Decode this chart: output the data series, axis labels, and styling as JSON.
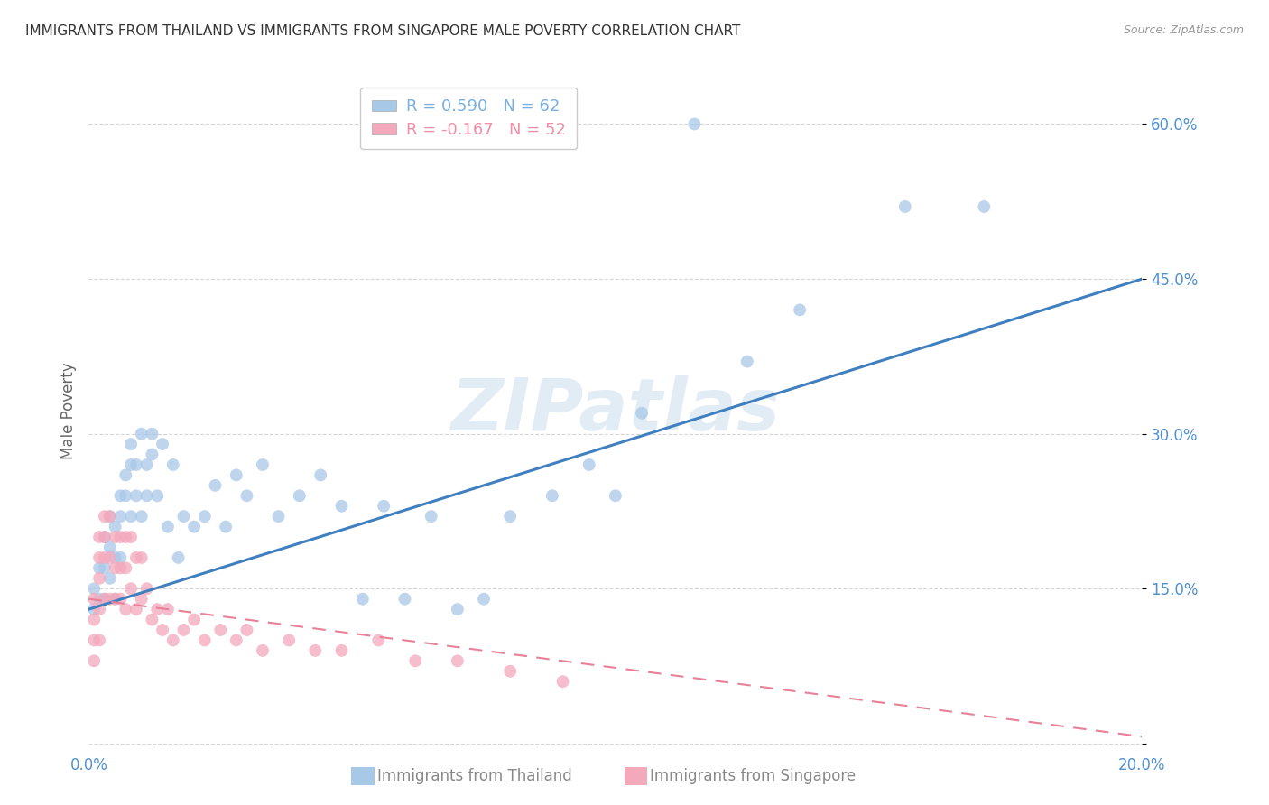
{
  "title": "IMMIGRANTS FROM THAILAND VS IMMIGRANTS FROM SINGAPORE MALE POVERTY CORRELATION CHART",
  "source": "Source: ZipAtlas.com",
  "ylabel": "Male Poverty",
  "xlim": [
    0.0,
    0.2
  ],
  "ylim": [
    -0.005,
    0.65
  ],
  "yticks": [
    0.0,
    0.15,
    0.3,
    0.45,
    0.6
  ],
  "xticks": [
    0.0,
    0.04,
    0.08,
    0.12,
    0.16,
    0.2
  ],
  "xtick_labels": [
    "0.0%",
    "",
    "",
    "",
    "",
    "20.0%"
  ],
  "ytick_labels": [
    "",
    "15.0%",
    "30.0%",
    "45.0%",
    "60.0%"
  ],
  "legend_entries": [
    {
      "label": "R = 0.590   N = 62",
      "color": "#7ab0e0"
    },
    {
      "label": "R = -0.167   N = 52",
      "color": "#f090a8"
    }
  ],
  "thailand_color": "#a8c8e8",
  "singapore_color": "#f4a8bc",
  "thailand_line_color": "#4080c0",
  "singapore_line_color": "#e88098",
  "watermark": "ZIPatlas",
  "background_color": "#ffffff",
  "grid_color": "#cccccc",
  "title_color": "#333333",
  "axis_label_color": "#666666",
  "tick_label_color": "#5090cc",
  "thailand_x": [
    0.001,
    0.001,
    0.002,
    0.002,
    0.003,
    0.003,
    0.003,
    0.004,
    0.004,
    0.004,
    0.005,
    0.005,
    0.005,
    0.006,
    0.006,
    0.006,
    0.007,
    0.007,
    0.008,
    0.008,
    0.008,
    0.009,
    0.009,
    0.01,
    0.01,
    0.011,
    0.011,
    0.012,
    0.012,
    0.013,
    0.014,
    0.015,
    0.016,
    0.017,
    0.018,
    0.02,
    0.022,
    0.024,
    0.026,
    0.028,
    0.03,
    0.033,
    0.036,
    0.04,
    0.044,
    0.048,
    0.052,
    0.056,
    0.06,
    0.065,
    0.07,
    0.075,
    0.08,
    0.088,
    0.095,
    0.1,
    0.105,
    0.115,
    0.125,
    0.135,
    0.155,
    0.17
  ],
  "thailand_y": [
    0.15,
    0.13,
    0.17,
    0.14,
    0.2,
    0.17,
    0.14,
    0.22,
    0.19,
    0.16,
    0.21,
    0.18,
    0.14,
    0.24,
    0.22,
    0.18,
    0.26,
    0.24,
    0.29,
    0.27,
    0.22,
    0.27,
    0.24,
    0.3,
    0.22,
    0.27,
    0.24,
    0.3,
    0.28,
    0.24,
    0.29,
    0.21,
    0.27,
    0.18,
    0.22,
    0.21,
    0.22,
    0.25,
    0.21,
    0.26,
    0.24,
    0.27,
    0.22,
    0.24,
    0.26,
    0.23,
    0.14,
    0.23,
    0.14,
    0.22,
    0.13,
    0.14,
    0.22,
    0.24,
    0.27,
    0.24,
    0.32,
    0.6,
    0.37,
    0.42,
    0.52,
    0.52
  ],
  "singapore_x": [
    0.001,
    0.001,
    0.001,
    0.001,
    0.002,
    0.002,
    0.002,
    0.002,
    0.002,
    0.003,
    0.003,
    0.003,
    0.003,
    0.004,
    0.004,
    0.004,
    0.005,
    0.005,
    0.005,
    0.006,
    0.006,
    0.006,
    0.007,
    0.007,
    0.007,
    0.008,
    0.008,
    0.009,
    0.009,
    0.01,
    0.01,
    0.011,
    0.012,
    0.013,
    0.014,
    0.015,
    0.016,
    0.018,
    0.02,
    0.022,
    0.025,
    0.028,
    0.03,
    0.033,
    0.038,
    0.043,
    0.048,
    0.055,
    0.062,
    0.07,
    0.08,
    0.09
  ],
  "singapore_y": [
    0.14,
    0.12,
    0.1,
    0.08,
    0.2,
    0.18,
    0.16,
    0.13,
    0.1,
    0.22,
    0.2,
    0.18,
    0.14,
    0.22,
    0.18,
    0.14,
    0.2,
    0.17,
    0.14,
    0.2,
    0.17,
    0.14,
    0.2,
    0.17,
    0.13,
    0.2,
    0.15,
    0.18,
    0.13,
    0.18,
    0.14,
    0.15,
    0.12,
    0.13,
    0.11,
    0.13,
    0.1,
    0.11,
    0.12,
    0.1,
    0.11,
    0.1,
    0.11,
    0.09,
    0.1,
    0.09,
    0.09,
    0.1,
    0.08,
    0.08,
    0.07,
    0.06
  ]
}
